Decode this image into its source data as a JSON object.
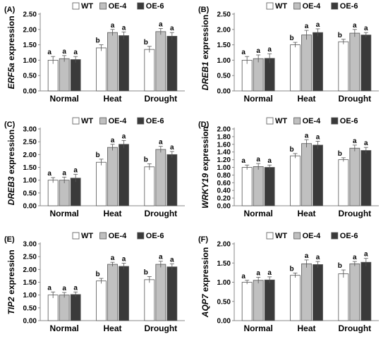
{
  "style": {
    "series_colors": [
      "#ffffff",
      "#c0c0c0",
      "#3a3a3a"
    ],
    "bar_stroke": "#555555"
  },
  "chart_data": [
    {
      "panel": "(A)",
      "type": "bar",
      "ylabel_gene": "ERF5a",
      "ylabel_suffix": " expression",
      "ylabel_italic_part": "gene",
      "ylim": [
        0,
        2.5
      ],
      "yticks": [
        "0.00",
        "0.50",
        "1.00",
        "1.50",
        "2.00",
        "2.50"
      ],
      "categories": [
        "Normal",
        "Heat",
        "Drought"
      ],
      "series": [
        {
          "name": "WT",
          "values": [
            1.0,
            1.4,
            1.35
          ],
          "errors": [
            0.12,
            0.1,
            0.1
          ],
          "sig": [
            "a",
            "b",
            "b"
          ]
        },
        {
          "name": "OE-4",
          "values": [
            1.05,
            1.9,
            1.93
          ],
          "errors": [
            0.1,
            0.1,
            0.1
          ],
          "sig": [
            "a",
            "a",
            "a"
          ]
        },
        {
          "name": "OE-6",
          "values": [
            1.02,
            1.8,
            1.78
          ],
          "errors": [
            0.1,
            0.12,
            0.12
          ],
          "sig": [
            "a",
            "a",
            "a"
          ]
        }
      ]
    },
    {
      "panel": "(B)",
      "type": "bar",
      "ylabel_gene": "DREB1",
      "ylabel_suffix": " expression",
      "ylabel_italic_part": "gene",
      "ylim": [
        0,
        2.5
      ],
      "yticks": [
        "0.00",
        "0.50",
        "1.00",
        "1.50",
        "2.00",
        "2.50"
      ],
      "categories": [
        "Normal",
        "Heat",
        "Drought"
      ],
      "series": [
        {
          "name": "WT",
          "values": [
            1.0,
            1.5,
            1.6
          ],
          "errors": [
            0.12,
            0.08,
            0.08
          ],
          "sig": [
            "a",
            "b",
            "b"
          ]
        },
        {
          "name": "OE-4",
          "values": [
            1.05,
            1.82,
            1.88
          ],
          "errors": [
            0.12,
            0.15,
            0.12
          ],
          "sig": [
            "a",
            "a",
            "a"
          ]
        },
        {
          "name": "OE-6",
          "values": [
            1.06,
            1.9,
            1.82
          ],
          "errors": [
            0.15,
            0.12,
            0.08
          ],
          "sig": [
            "a",
            "a",
            "a"
          ]
        }
      ]
    },
    {
      "panel": "(C)",
      "type": "bar",
      "ylabel_gene": "DREB3",
      "ylabel_suffix": " expression",
      "ylabel_italic_part": "gene",
      "ylim": [
        0,
        3.0
      ],
      "yticks": [
        "0.00",
        "0.50",
        "1.00",
        "1.50",
        "2.00",
        "2.50",
        "3.00"
      ],
      "categories": [
        "Normal",
        "Heat",
        "Drought"
      ],
      "series": [
        {
          "name": "WT",
          "values": [
            1.0,
            1.7,
            1.52
          ],
          "errors": [
            0.1,
            0.12,
            0.12
          ],
          "sig": [
            "a",
            "b",
            "b"
          ]
        },
        {
          "name": "OE-4",
          "values": [
            1.0,
            2.28,
            2.2
          ],
          "errors": [
            0.12,
            0.12,
            0.12
          ],
          "sig": [
            "a",
            "a",
            "a"
          ]
        },
        {
          "name": "OE-6",
          "values": [
            1.08,
            2.4,
            2.0
          ],
          "errors": [
            0.15,
            0.15,
            0.12
          ],
          "sig": [
            "a",
            "a",
            "a"
          ]
        }
      ]
    },
    {
      "panel": "(D)",
      "type": "bar",
      "ylabel_gene": "WRKY19",
      "ylabel_suffix": " expression",
      "ylabel_italic_part": "gene",
      "ylim": [
        0,
        2.0
      ],
      "yticks": [
        "0.00",
        "0.20",
        "0.40",
        "0.60",
        "0.80",
        "1.00",
        "1.20",
        "1.40",
        "1.60",
        "1.80",
        "2.00"
      ],
      "categories": [
        "Normal",
        "Heat",
        "Drought"
      ],
      "series": [
        {
          "name": "WT",
          "values": [
            1.0,
            1.3,
            1.2
          ],
          "errors": [
            0.06,
            0.06,
            0.05
          ],
          "sig": [
            "a",
            "b",
            "b"
          ]
        },
        {
          "name": "OE-4",
          "values": [
            1.02,
            1.62,
            1.5
          ],
          "errors": [
            0.08,
            0.1,
            0.08
          ],
          "sig": [
            "a",
            "a",
            "a"
          ]
        },
        {
          "name": "OE-6",
          "values": [
            1.0,
            1.58,
            1.44
          ],
          "errors": [
            0.06,
            0.1,
            0.08
          ],
          "sig": [
            "a",
            "a",
            "a"
          ]
        }
      ]
    },
    {
      "panel": "(E)",
      "type": "bar",
      "ylabel_gene": "TIP2",
      "ylabel_suffix": " expression",
      "ylabel_italic_part": "gene",
      "ylim": [
        0,
        3.0
      ],
      "yticks": [
        "0.00",
        "0.50",
        "1.00",
        "1.50",
        "2.00",
        "2.50",
        "3.00"
      ],
      "categories": [
        "Normal",
        "Heat",
        "Drought"
      ],
      "series": [
        {
          "name": "WT",
          "values": [
            1.0,
            1.55,
            1.6
          ],
          "errors": [
            0.12,
            0.1,
            0.12
          ],
          "sig": [
            "a",
            "b",
            "b"
          ]
        },
        {
          "name": "OE-4",
          "values": [
            1.0,
            2.2,
            2.2
          ],
          "errors": [
            0.1,
            0.08,
            0.12
          ],
          "sig": [
            "a",
            "a",
            "a"
          ]
        },
        {
          "name": "OE-6",
          "values": [
            1.02,
            2.12,
            2.1
          ],
          "errors": [
            0.1,
            0.12,
            0.12
          ],
          "sig": [
            "a",
            "a",
            "a"
          ]
        }
      ]
    },
    {
      "panel": "(F)",
      "type": "bar",
      "ylabel_gene": "AQP7",
      "ylabel_suffix": " expression",
      "ylabel_italic_part": "gene",
      "ylim": [
        0,
        2.0
      ],
      "yticks": [
        "0.00",
        "0.50",
        "1.00",
        "1.50",
        "2.00"
      ],
      "categories": [
        "Normal",
        "Heat",
        "Drought"
      ],
      "series": [
        {
          "name": "WT",
          "values": [
            1.0,
            1.18,
            1.22
          ],
          "errors": [
            0.05,
            0.06,
            0.1
          ],
          "sig": [
            "a",
            "b",
            "b"
          ]
        },
        {
          "name": "OE-4",
          "values": [
            1.05,
            1.48,
            1.48
          ],
          "errors": [
            0.08,
            0.1,
            0.06
          ],
          "sig": [
            "a",
            "a",
            "a"
          ]
        },
        {
          "name": "OE-6",
          "values": [
            1.06,
            1.46,
            1.52
          ],
          "errors": [
            0.08,
            0.08,
            0.1
          ],
          "sig": [
            "a",
            "a",
            "a"
          ]
        }
      ]
    }
  ]
}
